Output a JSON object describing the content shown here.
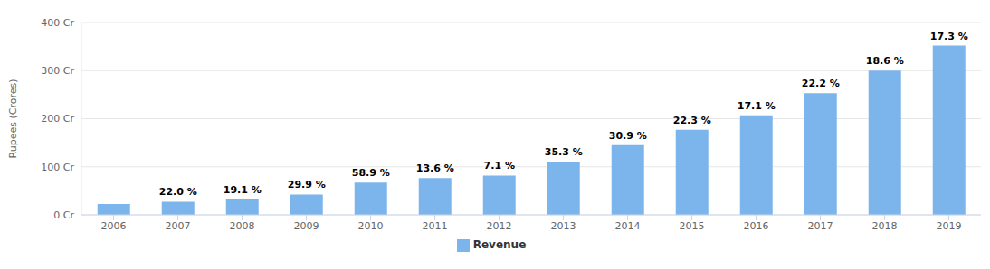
{
  "chart_data": {
    "type": "bar",
    "categories": [
      "2006",
      "2007",
      "2008",
      "2009",
      "2010",
      "2011",
      "2012",
      "2013",
      "2014",
      "2015",
      "2016",
      "2017",
      "2018",
      "2019"
    ],
    "series": [
      {
        "name": "Revenue",
        "color": "#7cb5ec",
        "values": [
          22.4,
          27.3,
          32.6,
          42.3,
          67.2,
          76.4,
          81.8,
          110.6,
          145,
          177,
          207,
          253,
          300,
          352
        ]
      }
    ],
    "annotations": [
      null,
      "22.0 %",
      "19.1 %",
      "29.9 %",
      "58.9 %",
      "13.6 %",
      "7.1 %",
      "35.3 %",
      "30.9 %",
      "22.3 %",
      "17.1 %",
      "22.2 %",
      "18.6 %",
      "17.3 %"
    ],
    "y_label": "Rupees (Crores)",
    "ylim": [
      0,
      400
    ],
    "yticks": [
      {
        "value": 0,
        "label": "0 Cr"
      },
      {
        "value": 100,
        "label": "100 Cr"
      },
      {
        "value": 200,
        "label": "200 Cr"
      },
      {
        "value": 300,
        "label": "300 Cr"
      },
      {
        "value": 400,
        "label": "400 Cr"
      }
    ],
    "grid": true,
    "legend": "bottom"
  }
}
